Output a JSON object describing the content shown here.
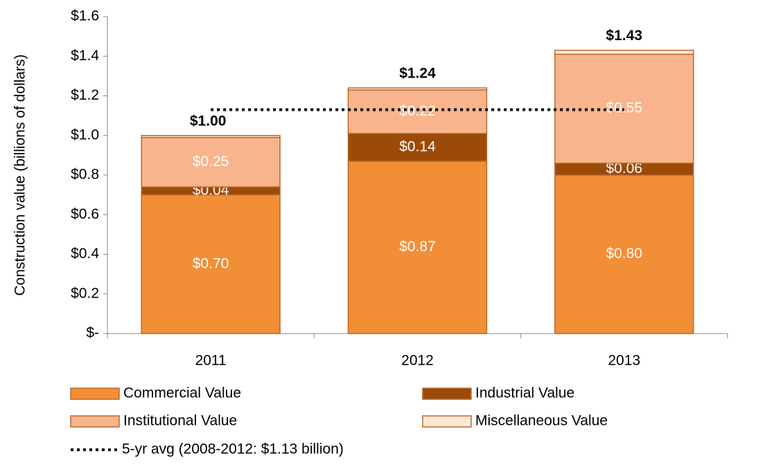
{
  "chart_data": {
    "type": "stacked_bar",
    "y_label": "Construction value (billions of dollars)",
    "categories": [
      "2011",
      "2012",
      "2013"
    ],
    "series": [
      {
        "name": "Commercial Value",
        "color": "#f28e36",
        "values": [
          0.7,
          0.87,
          0.8
        ],
        "value_labels": [
          "$0.70",
          "$0.87",
          "$0.80"
        ]
      },
      {
        "name": "Industrial Value",
        "color": "#9c4a08",
        "values": [
          0.04,
          0.14,
          0.06
        ],
        "value_labels": [
          "$0.04",
          "$0.14",
          "$0.06"
        ]
      },
      {
        "name": "Institutional Value",
        "color": "#f8b48c",
        "values": [
          0.25,
          0.22,
          0.55
        ],
        "value_labels": [
          "$0.25",
          "$0.22",
          "$0.55"
        ]
      },
      {
        "name": "Miscellaneous Value",
        "color": "#fde8d6",
        "values": [
          0.01,
          0.01,
          0.02
        ]
      }
    ],
    "totals": {
      "values": [
        1.0,
        1.24,
        1.43
      ],
      "value_labels": [
        "$1.00",
        "$1.24",
        "$1.43"
      ]
    },
    "average": {
      "name": "5-yr avg (2008-2012: $1.13 billion)",
      "value": 1.13,
      "color": "#000000"
    },
    "ylim": [
      0,
      1.6
    ],
    "yticks": [
      {
        "value": 0,
        "label": "$-"
      },
      {
        "value": 0.2,
        "label": "$0.2"
      },
      {
        "value": 0.4,
        "label": "$0.4"
      },
      {
        "value": 0.6,
        "label": "$0.6"
      },
      {
        "value": 0.8,
        "label": "$0.8"
      },
      {
        "value": 1.0,
        "label": "$1.0"
      },
      {
        "value": 1.2,
        "label": "$1.2"
      },
      {
        "value": 1.4,
        "label": "$1.4"
      },
      {
        "value": 1.6,
        "label": "$1.6"
      }
    ]
  }
}
